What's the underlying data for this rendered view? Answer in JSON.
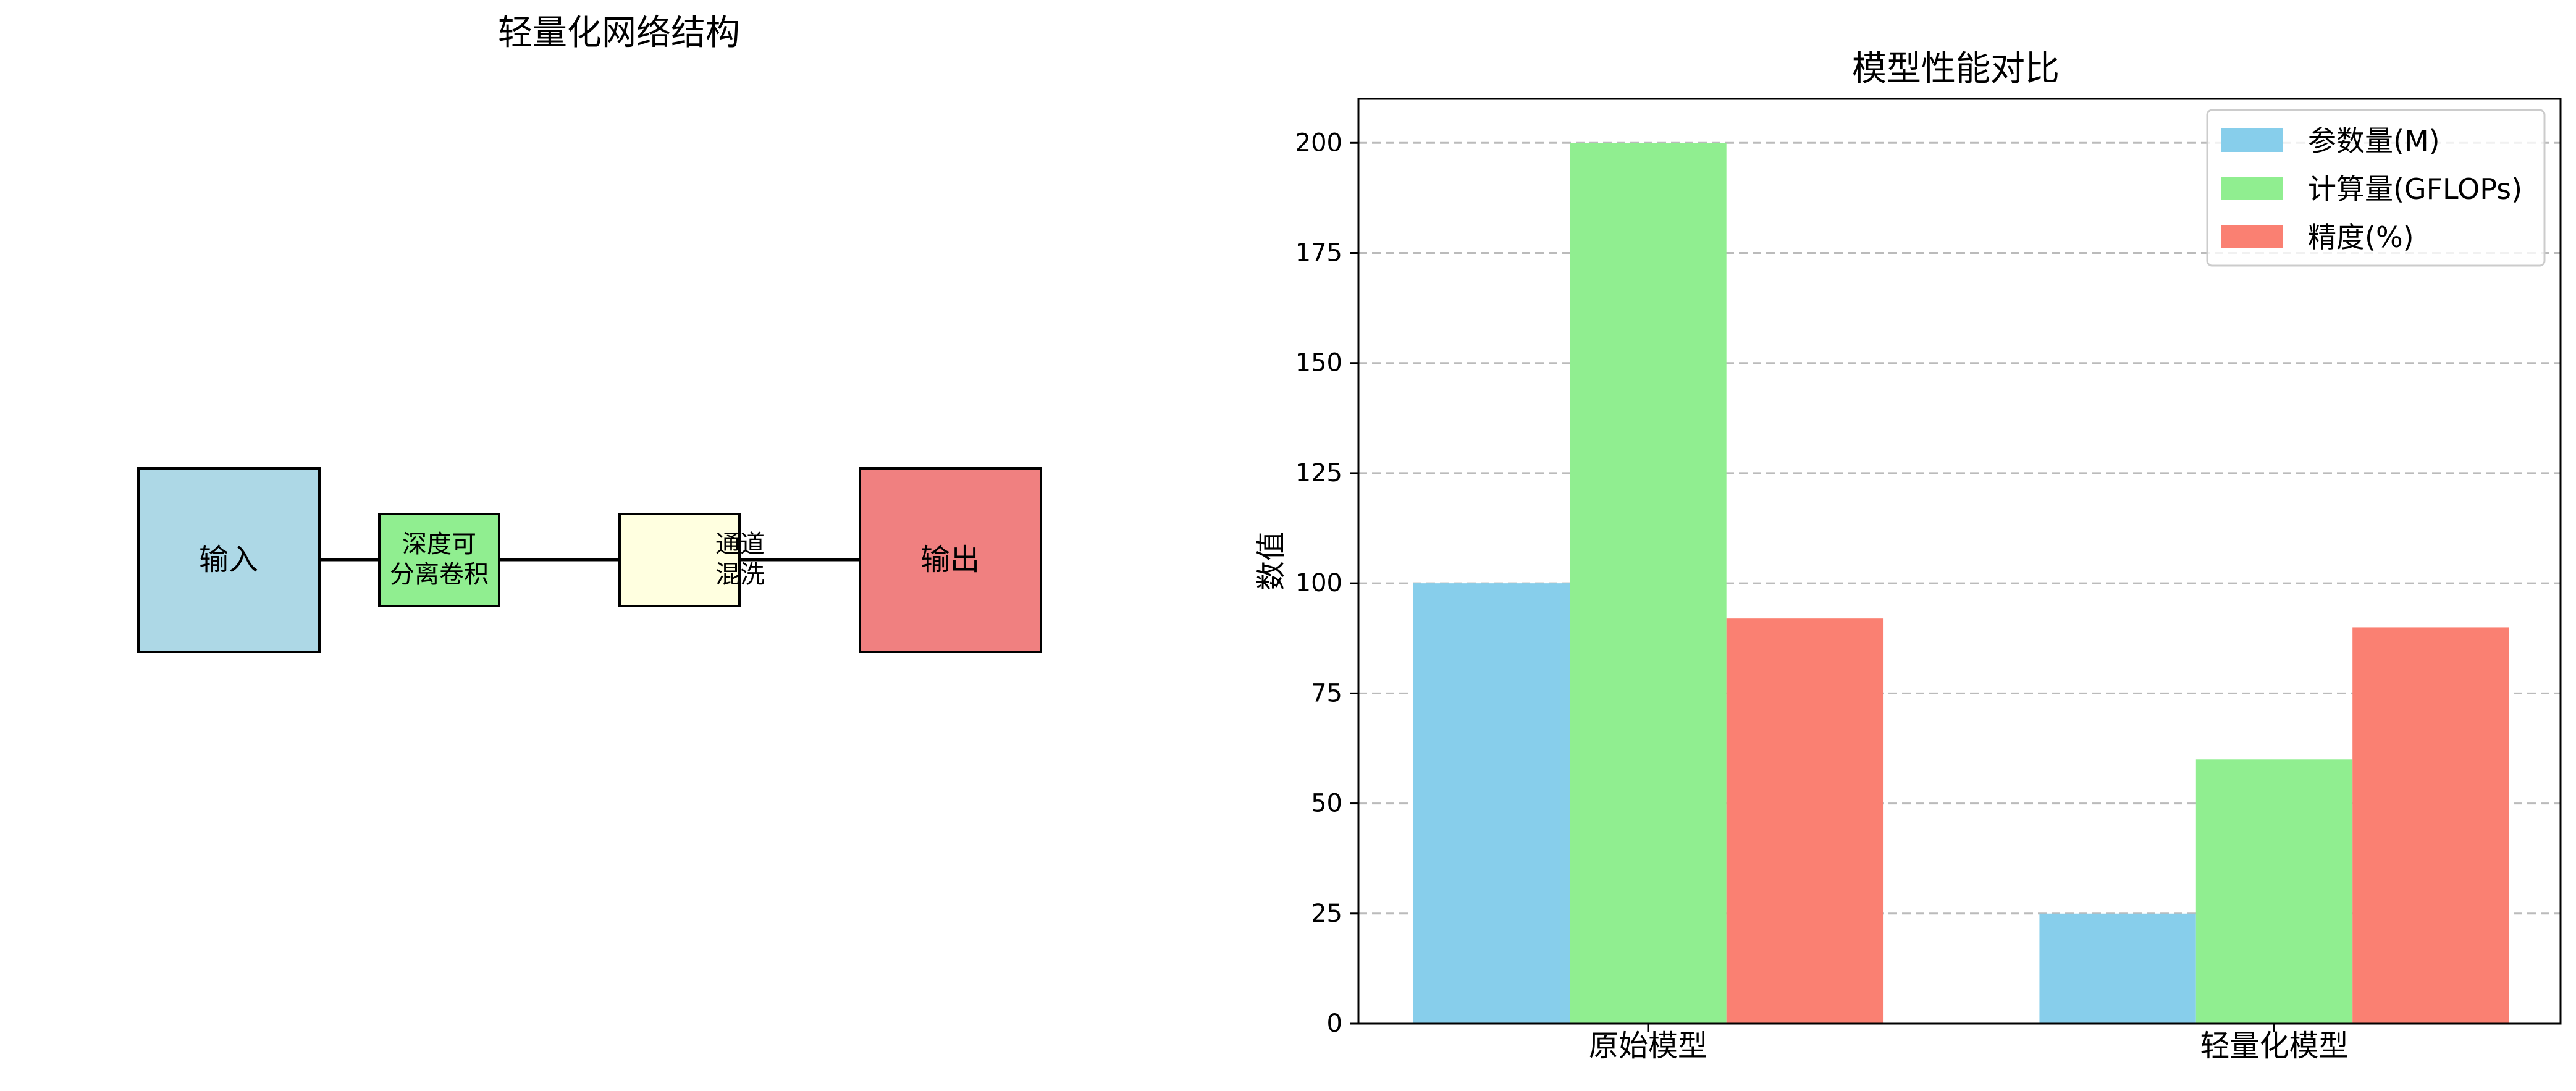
{
  "diagram": {
    "title": "轻量化网络结构",
    "nodes": [
      {
        "id": "input",
        "label_lines": [
          "输入"
        ],
        "color": "#add8e6"
      },
      {
        "id": "dwconv",
        "label_lines": [
          "深度可",
          "分离卷积"
        ],
        "color": "#90ee90"
      },
      {
        "id": "shuffle",
        "label_lines": [
          "通道",
          "混洗"
        ],
        "color": "#ffffe0"
      },
      {
        "id": "output",
        "label_lines": [
          "输出"
        ],
        "color": "#f08080"
      }
    ]
  },
  "chart_data": {
    "type": "bar",
    "title": "模型性能对比",
    "xlabel": "",
    "ylabel": "数值",
    "categories": [
      "原始模型",
      "轻量化模型"
    ],
    "series": [
      {
        "name": "参数量(M)",
        "values": [
          100,
          25
        ],
        "color": "#87ceeb"
      },
      {
        "name": "计算量(GFLOPs)",
        "values": [
          200,
          60
        ],
        "color": "#90ee90"
      },
      {
        "name": "精度(%)",
        "values": [
          92,
          90
        ],
        "color": "#fa8072"
      }
    ],
    "ylim": [
      0,
      210
    ],
    "yticks": [
      0,
      25,
      50,
      75,
      100,
      125,
      150,
      175,
      200
    ],
    "grid": "y-dashed",
    "legend": "top-right"
  }
}
